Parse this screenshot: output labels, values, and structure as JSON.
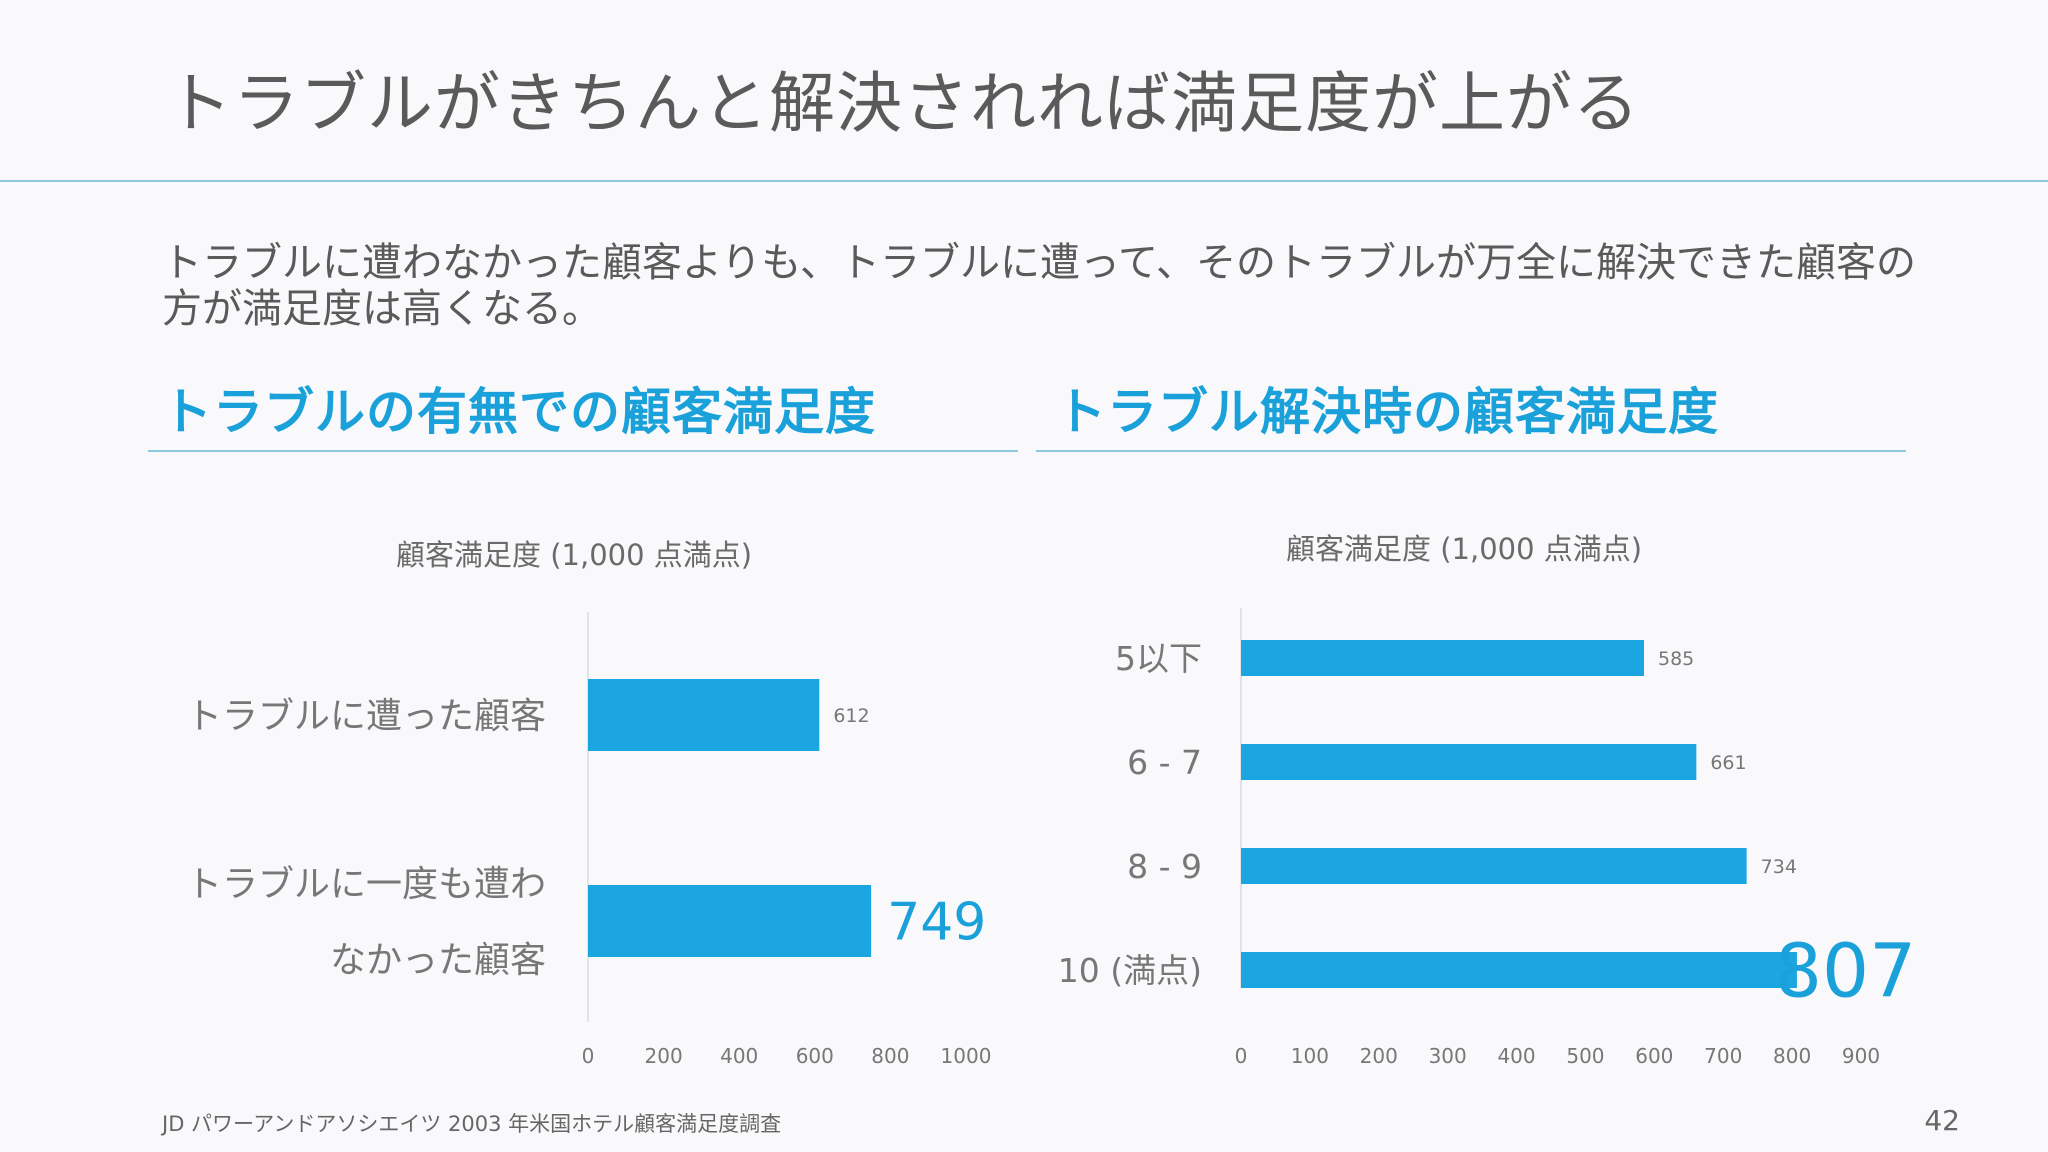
{
  "slide": {
    "title": "トラブルがきちんと解決されれば満足度が上がる",
    "lead": "トラブルに遭わなかった顧客よりも、トラブルに遭って、そのトラブルが万全に解決できた顧客の方が満足度は高くなる。",
    "footer_source": "JD パワーアンドアソシエイツ 2003 年米国ホテル顧客満足度調査",
    "page_number": "42"
  },
  "sections": {
    "left_heading": "トラブルの有無での顧客満足度",
    "right_heading": "トラブル解決時の顧客満足度"
  },
  "colors": {
    "bar": "#1ba6e1",
    "accent": "#1ba1d9",
    "rule": "#8ec9e4"
  },
  "chart_data": [
    {
      "type": "bar",
      "orientation": "horizontal",
      "title": "顧客満足度 (1,000 点満点)",
      "categories": [
        [
          "トラブルに遭った顧客"
        ],
        [
          "トラブルに一度も遭わ",
          "なかった顧客"
        ]
      ],
      "values": [
        612,
        749
      ],
      "value_labels": [
        "612",
        "749"
      ],
      "highlight_index": 1,
      "xlim": [
        0,
        1000
      ],
      "xticks": [
        0,
        200,
        400,
        600,
        800,
        1000
      ],
      "grid": false
    },
    {
      "type": "bar",
      "orientation": "horizontal",
      "title": "顧客満足度 (1,000 点満点)",
      "categories": [
        [
          "5以下"
        ],
        [
          "6 - 7"
        ],
        [
          "8 - 9"
        ],
        [
          "10 (満点)"
        ]
      ],
      "values": [
        585,
        661,
        734,
        807
      ],
      "value_labels": [
        "585",
        "661",
        "734",
        "807"
      ],
      "highlight_index": 3,
      "xlim": [
        0,
        900
      ],
      "xticks": [
        0,
        100,
        200,
        300,
        400,
        500,
        600,
        700,
        800,
        900
      ],
      "grid": false
    }
  ]
}
